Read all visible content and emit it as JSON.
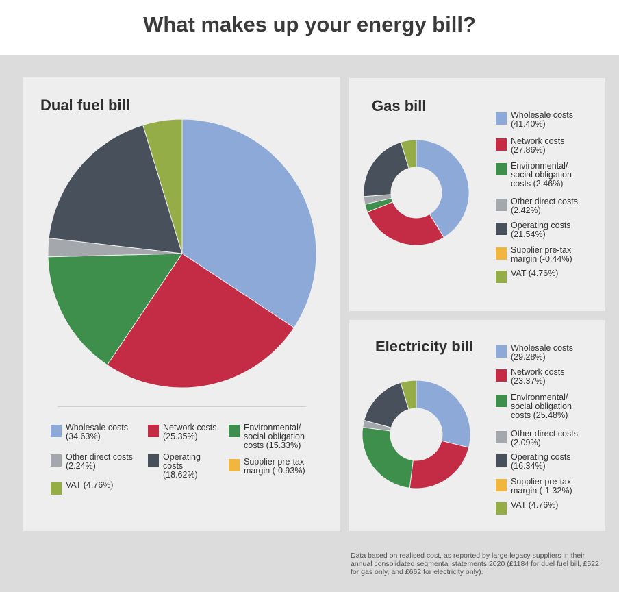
{
  "title": "What makes up your energy bill?",
  "colors": {
    "wholesale": "#8da9d8",
    "network": "#c42b44",
    "environmental": "#3e8f4c",
    "other_direct": "#a4a8ac",
    "operating": "#48505c",
    "supplier_margin": "#f1b63e",
    "vat": "#95ad47"
  },
  "chart_data": [
    {
      "type": "pie",
      "title": "Dual fuel bill",
      "categories": [
        "Wholesale costs",
        "Network costs",
        "Environmental/ social obligation costs",
        "Other direct costs",
        "Operating costs",
        "Supplier pre-tax margin",
        "VAT"
      ],
      "values": [
        34.63,
        25.35,
        15.33,
        2.24,
        18.62,
        -0.93,
        4.76
      ],
      "legend_labels": [
        [
          "Wholesale costs",
          "(34.63%)"
        ],
        [
          "Network costs",
          "(25.35%)"
        ],
        [
          "Environmental/",
          "social obligation",
          "costs (15.33%)"
        ],
        [
          "Other direct costs",
          "(2.24%)"
        ],
        [
          "Operating",
          "costs",
          "(18.62%)"
        ],
        [
          "Supplier pre-tax",
          "margin (-0.93%)"
        ],
        [
          "VAT (4.76%)"
        ]
      ],
      "legend_position": "bottom"
    },
    {
      "type": "pie",
      "title": "Gas bill",
      "categories": [
        "Wholesale costs",
        "Network costs",
        "Environmental/ social obligation costs",
        "Other direct costs",
        "Operating costs",
        "Supplier pre-tax margin",
        "VAT"
      ],
      "values": [
        41.4,
        27.86,
        2.46,
        2.42,
        21.54,
        -0.44,
        4.76
      ],
      "legend_labels": [
        [
          "Wholesale costs",
          "(41.40%)"
        ],
        [
          "Network costs",
          "(27.86%)"
        ],
        [
          "Environmental/",
          "social obligation",
          "costs (2.46%)"
        ],
        [
          "Other direct costs",
          "(2.42%)"
        ],
        [
          "Operating costs",
          "(21.54%)"
        ],
        [
          "Supplier pre-tax",
          "margin (-0.44%)"
        ],
        [
          "VAT (4.76%)"
        ]
      ],
      "legend_position": "right"
    },
    {
      "type": "pie",
      "title": "Electricity bill",
      "categories": [
        "Wholesale costs",
        "Network costs",
        "Environmental/ social obligation costs",
        "Other direct costs",
        "Operating costs",
        "Supplier pre-tax margin",
        "VAT"
      ],
      "values": [
        29.28,
        23.37,
        25.48,
        2.09,
        16.34,
        -1.32,
        4.76
      ],
      "legend_labels": [
        [
          "Wholesale costs",
          "(29.28%)"
        ],
        [
          "Network costs",
          "(23.37%)"
        ],
        [
          "Environmental/",
          "social obligation",
          "costs (25.48%)"
        ],
        [
          "Other direct costs",
          "(2.09%)"
        ],
        [
          "Operating costs",
          "(16.34%)"
        ],
        [
          "Supplier pre-tax",
          "margin (-1.32%)"
        ],
        [
          "VAT (4.76%)"
        ]
      ],
      "legend_position": "right"
    }
  ],
  "footnote": "Data based on realised cost, as reported by large legacy suppliers in their annual consolidated segmental statements 2020 (£1184 for duel fuel bill, £522 for gas only, and £662 for electricity only)."
}
